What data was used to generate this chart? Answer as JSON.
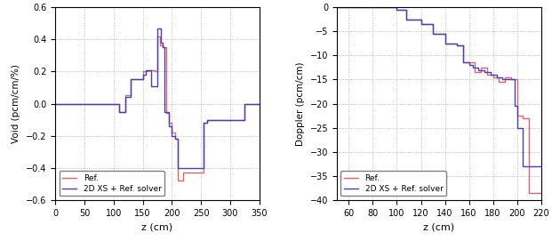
{
  "left": {
    "ylabel": "Void (pcm/cm/%1)",
    "xlabel": "z (cm)",
    "xlim": [
      0,
      350
    ],
    "ylim": [
      -0.6,
      0.6
    ],
    "xticks": [
      0,
      50,
      100,
      150,
      200,
      250,
      300,
      350
    ],
    "yticks": [
      -0.6,
      -0.4,
      -0.2,
      0.0,
      0.2,
      0.4,
      0.6
    ],
    "ref_color": "#e8635a",
    "blue_color": "#4040c0",
    "legend_labels": [
      "Ref.",
      "2D XS + Ref. solver"
    ]
  },
  "right": {
    "ylabel": "Doppler (pcm/cm)",
    "xlabel": "z (cm)",
    "xlim": [
      50,
      220
    ],
    "ylim": [
      -40,
      0
    ],
    "xticks": [
      60,
      80,
      100,
      120,
      140,
      160,
      180,
      200,
      220
    ],
    "yticks": [
      0,
      -5,
      -10,
      -15,
      -20,
      -25,
      -30,
      -35,
      -40
    ],
    "ref_color": "#e8635a",
    "blue_color": "#4040c0",
    "legend_labels": [
      "Ref.",
      "2D XS + Ref. solver"
    ]
  },
  "grid_color": "#aaaaaa",
  "grid_style": "dotted",
  "linewidth": 1.0
}
